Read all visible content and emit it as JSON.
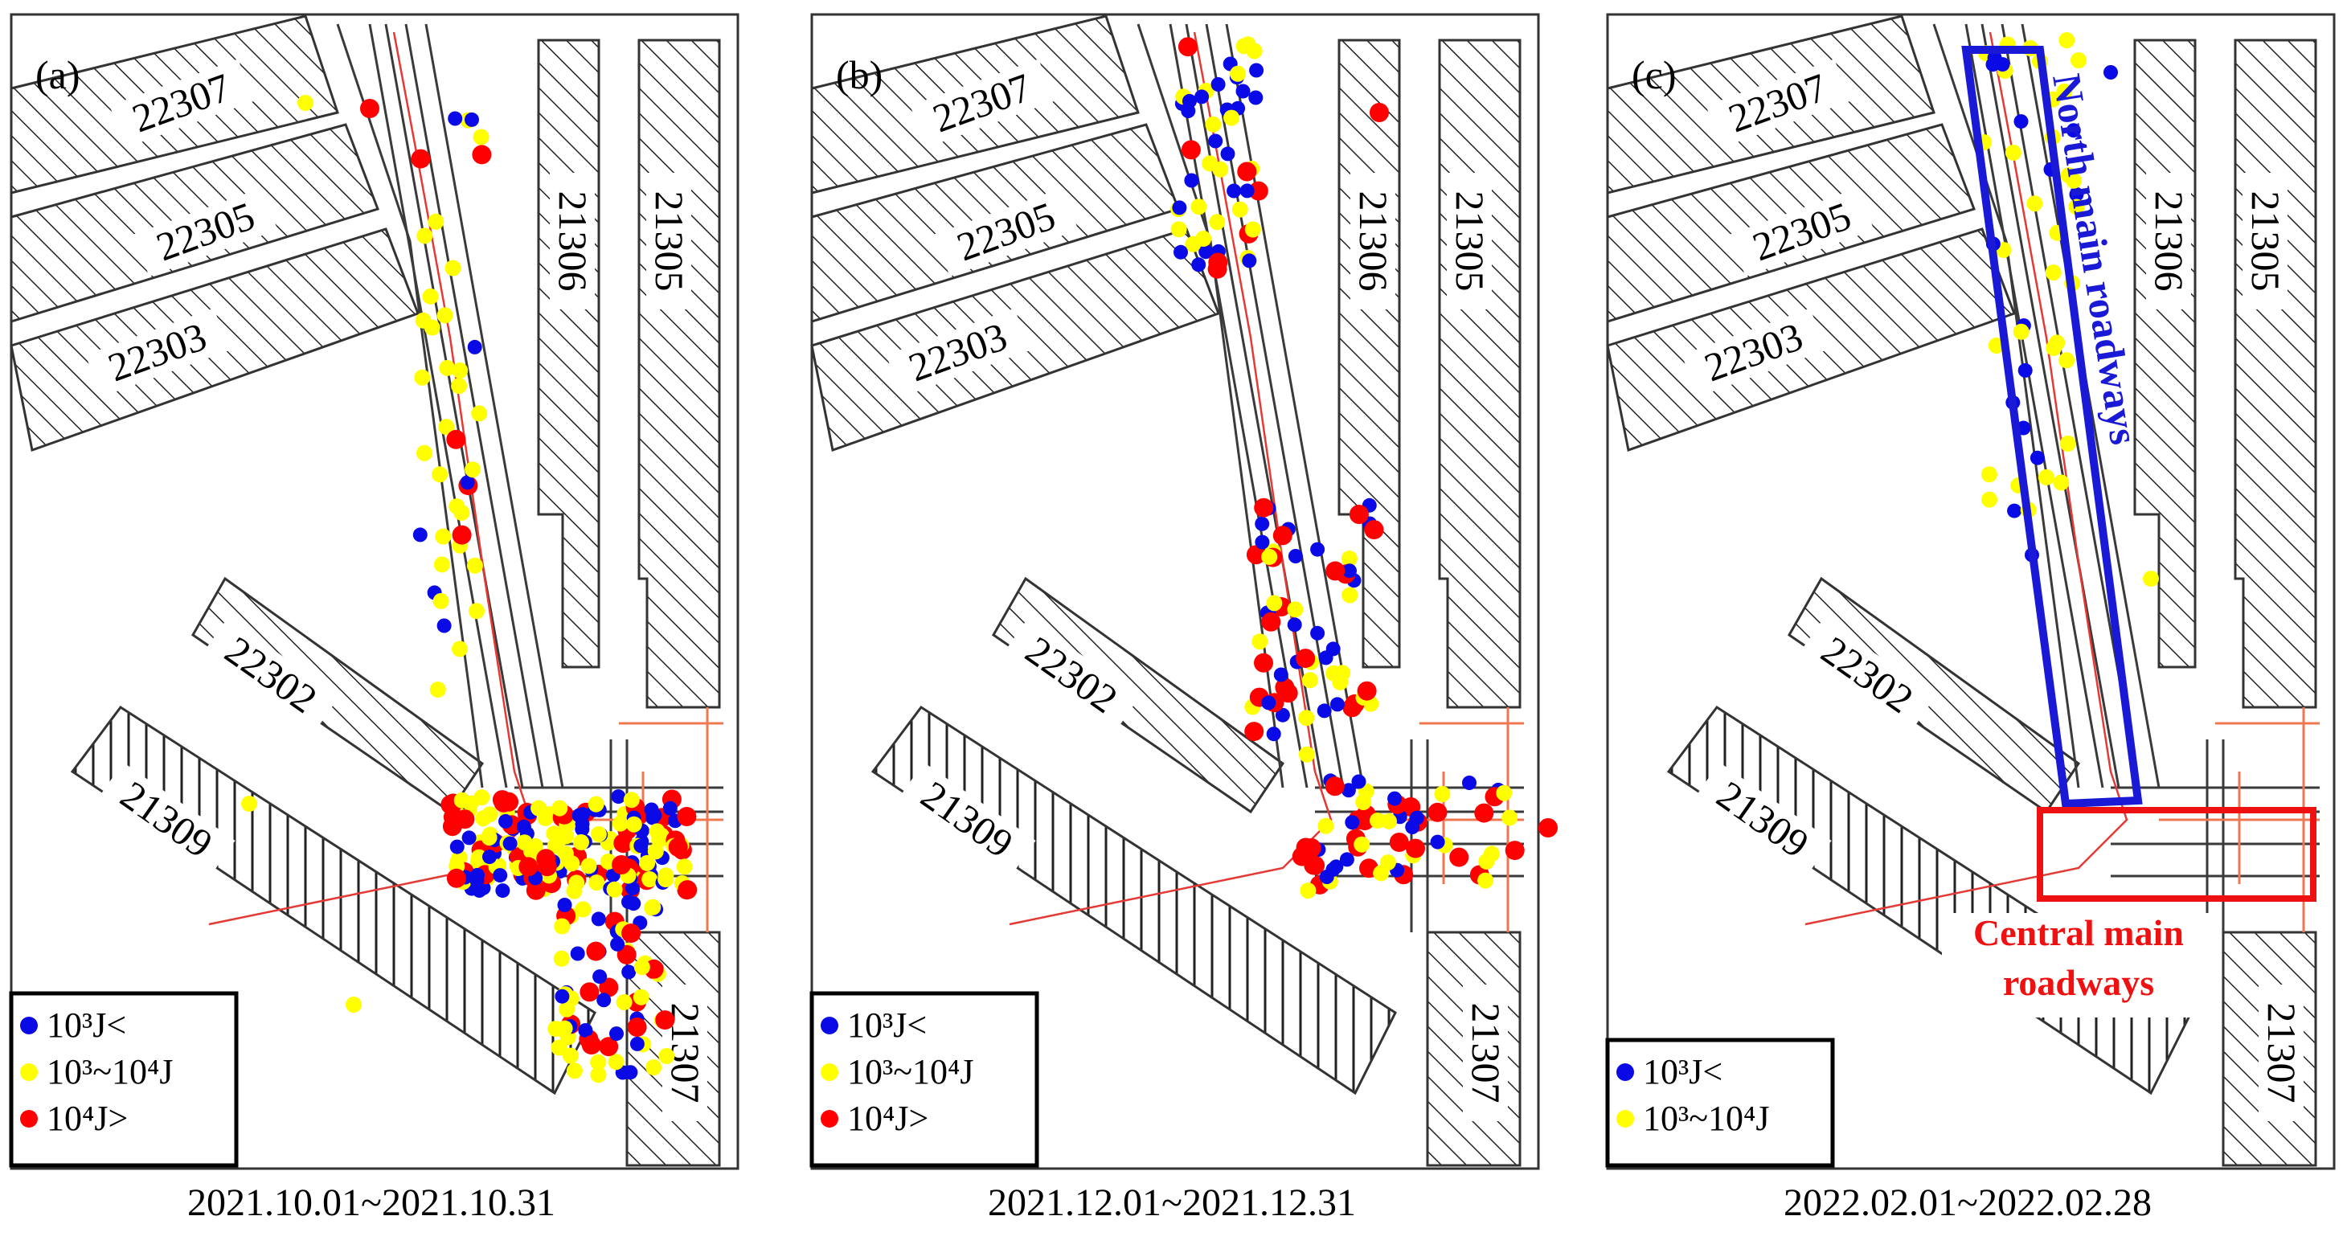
{
  "colors": {
    "small": "#0a0ae6",
    "medium": "#ffff00",
    "large": "#ff0000",
    "north_box": "#1a1ad6",
    "central_box": "#ee1111"
  },
  "legend": {
    "small": "10³J<",
    "medium": "10³~10⁴J",
    "large": "10⁴J>"
  },
  "panels": [
    {
      "label": "(a)",
      "date": "2021.10.01~2021.10.31",
      "ids": [
        "22307",
        "22305",
        "22303",
        "21306",
        "21305",
        "22302",
        "21309",
        "21307"
      ],
      "legend_items": [
        "small",
        "medium",
        "large"
      ]
    },
    {
      "label": "(b)",
      "date": "2021.12.01~2021.12.31",
      "ids": [
        "22307",
        "22305",
        "22303",
        "21306",
        "21305",
        "22302",
        "21309",
        "21307"
      ],
      "legend_items": [
        "small",
        "medium",
        "large"
      ]
    },
    {
      "label": "(c)",
      "date": "2022.02.01~2022.02.28",
      "ids": [
        "22307",
        "22305",
        "22303",
        "21306",
        "21305",
        "22302",
        "21309",
        "21307"
      ],
      "legend_items": [
        "small",
        "medium"
      ],
      "north_label": "North main roadways",
      "central_label_1": "Central main",
      "central_label_2": "roadways"
    }
  ]
}
